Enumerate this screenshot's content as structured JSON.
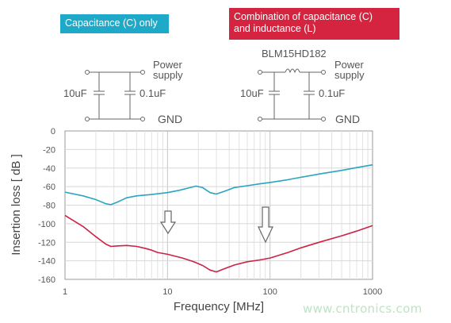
{
  "header": {
    "box_c_only": "Capacitance (C) only",
    "box_cl_line1": "Combination of capacitance (C)",
    "box_cl_line2": "and inductance (L)"
  },
  "circuit_left": {
    "cap1": "10uF",
    "cap2": "0.1uF",
    "power1": "Power",
    "power2": "supply",
    "gnd": "GND"
  },
  "circuit_right": {
    "part": "BLM15HD182",
    "cap1": "10uF",
    "cap2": "0.1uF",
    "power1": "Power",
    "power2": "supply",
    "gnd": "GND"
  },
  "colors": {
    "c_only": "#2aa5c0",
    "c_and_l": "#cc2244",
    "box_c": "#1fa9c9",
    "box_cl": "#d4243f"
  },
  "icons": [
    "down-arrow-icon",
    "down-arrow-icon",
    "inductor-coil-icon",
    "capacitor-icon"
  ],
  "watermark": "www.cntronics.com",
  "chart_data": {
    "type": "line",
    "xlabel": "Frequency [MHz]",
    "ylabel": "Insertion loss [ dB ]",
    "xscale": "log",
    "xlim": [
      1,
      1000
    ],
    "ylim": [
      -160,
      0
    ],
    "xticks": [
      "1",
      "10",
      "100",
      "1000"
    ],
    "yticks": [
      "0",
      "-20",
      "-40",
      "-60",
      "-80",
      "-100",
      "-120",
      "-140",
      "-160"
    ],
    "grid": true,
    "series": [
      {
        "name": "Capacitance (C) only",
        "x": [
          1,
          1.5,
          2,
          2.5,
          2.8,
          3.2,
          4,
          5,
          7,
          10,
          13,
          16,
          19,
          22,
          26,
          30,
          36,
          45,
          60,
          80,
          100,
          150,
          200,
          300,
          500,
          700,
          1000
        ],
        "y": [
          -66,
          -70,
          -74,
          -78.5,
          -79.5,
          -77,
          -72,
          -70,
          -68.5,
          -66.5,
          -64,
          -61.5,
          -59.5,
          -61,
          -66.5,
          -68,
          -65,
          -61,
          -59,
          -57,
          -55.5,
          -52.5,
          -50,
          -46.5,
          -42.5,
          -39.5,
          -36.5
        ]
      },
      {
        "name": "Combination of capacitance (C) and inductance (L)",
        "x": [
          1,
          1.5,
          2,
          2.5,
          2.8,
          3.2,
          4,
          5,
          6,
          7,
          8,
          10,
          14,
          18,
          22,
          26,
          30,
          35,
          45,
          60,
          80,
          100,
          150,
          200,
          300,
          500,
          700,
          1000
        ],
        "y": [
          -91,
          -103,
          -114,
          -122,
          -124.5,
          -124,
          -123.5,
          -124.5,
          -126.5,
          -128.5,
          -131,
          -133,
          -137,
          -141,
          -145,
          -150,
          -152,
          -149,
          -144.5,
          -141,
          -139,
          -137,
          -131,
          -126,
          -120,
          -113,
          -108,
          -102
        ]
      }
    ]
  }
}
